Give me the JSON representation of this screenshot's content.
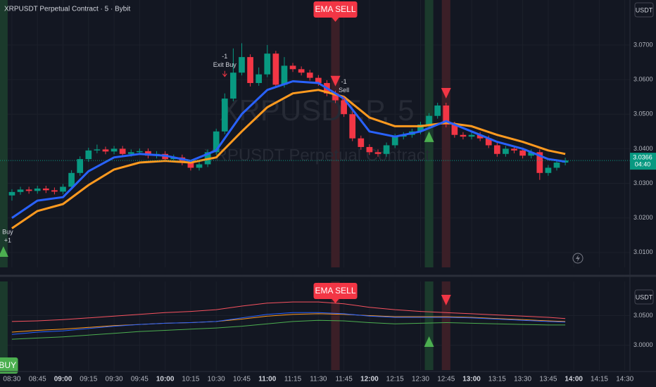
{
  "chart_data": [
    {
      "type": "candlestick",
      "title": "XRPUSDT Perpetual Contract · 5 · Bybit",
      "watermark": [
        "XRPUSDT.P, 5",
        "XRPUSDT Perpetual Contract"
      ],
      "currency": "USDT",
      "xlim": [
        "08:23",
        "14:33"
      ],
      "xticks": [
        "08:30",
        "08:45",
        "09:00",
        "09:15",
        "09:30",
        "09:45",
        "10:00",
        "10:15",
        "10:30",
        "10:45",
        "11:00",
        "11:15",
        "11:30",
        "11:45",
        "12:00",
        "12:15",
        "12:30",
        "12:45",
        "13:00",
        "13:15",
        "13:30",
        "13:45",
        "14:00",
        "14:15",
        "14:30"
      ],
      "ylim": [
        3.0057,
        3.083
      ],
      "yticks": [
        {
          "value": 3.01,
          "label": "3.0100"
        },
        {
          "value": 3.02,
          "label": "3.0200"
        },
        {
          "value": 3.03,
          "label": "3.0300"
        },
        {
          "value": 3.04,
          "label": "3.0400"
        },
        {
          "value": 3.05,
          "label": "3.0500"
        },
        {
          "value": 3.06,
          "label": "3.0600"
        },
        {
          "value": 3.07,
          "label": "3.0700"
        }
      ],
      "grid": true,
      "candles": {
        "up_color": "#089981",
        "down_color": "#f23645",
        "x": [
          "08:30",
          "08:35",
          "08:40",
          "08:45",
          "08:50",
          "08:55",
          "09:00",
          "09:05",
          "09:10",
          "09:15",
          "09:20",
          "09:25",
          "09:30",
          "09:35",
          "09:40",
          "09:45",
          "09:50",
          "09:55",
          "10:00",
          "10:05",
          "10:10",
          "10:15",
          "10:20",
          "10:25",
          "10:30",
          "10:35",
          "10:40",
          "10:45",
          "10:50",
          "10:55",
          "11:00",
          "11:05",
          "11:10",
          "11:15",
          "11:20",
          "11:25",
          "11:30",
          "11:35",
          "11:40",
          "11:45",
          "11:50",
          "11:55",
          "12:00",
          "12:05",
          "12:10",
          "12:15",
          "12:20",
          "12:25",
          "12:30",
          "12:35",
          "12:40",
          "12:45",
          "12:50",
          "12:55",
          "13:00",
          "13:05",
          "13:10",
          "13:15",
          "13:20",
          "13:25",
          "13:30",
          "13:35",
          "13:40",
          "13:45",
          "13:50",
          "13:55"
        ],
        "open": [
          3.0265,
          3.0275,
          3.0282,
          3.0278,
          3.0285,
          3.028,
          3.0276,
          3.029,
          3.033,
          3.037,
          3.0395,
          3.0398,
          3.0392,
          3.04,
          3.0385,
          3.039,
          3.0393,
          3.038,
          3.0385,
          3.037,
          3.0375,
          3.036,
          3.0345,
          3.0355,
          3.039,
          3.045,
          3.0545,
          3.062,
          3.0665,
          3.059,
          3.0615,
          3.0675,
          3.0585,
          3.064,
          3.063,
          3.062,
          3.0605,
          3.059,
          3.056,
          3.054,
          3.05,
          3.043,
          3.0405,
          3.039,
          3.0385,
          3.041,
          3.0435,
          3.044,
          3.045,
          3.047,
          3.0495,
          3.0525,
          3.047,
          3.044,
          3.0435,
          3.044,
          3.043,
          3.041,
          3.0385,
          3.04,
          3.0395,
          3.038,
          3.039,
          3.033,
          3.0345,
          3.036
        ],
        "high": [
          3.0283,
          3.029,
          3.029,
          3.0293,
          3.0293,
          3.0288,
          3.0298,
          3.0338,
          3.0378,
          3.0403,
          3.0412,
          3.0406,
          3.0408,
          3.0408,
          3.0398,
          3.0401,
          3.0401,
          3.0393,
          3.0393,
          3.0383,
          3.0383,
          3.0368,
          3.0363,
          3.0398,
          3.0458,
          3.056,
          3.069,
          3.0705,
          3.0673,
          3.0635,
          3.07,
          3.0683,
          3.0665,
          3.0648,
          3.0638,
          3.0628,
          3.0613,
          3.0598,
          3.0568,
          3.0548,
          3.0508,
          3.0438,
          3.0413,
          3.0398,
          3.0418,
          3.0443,
          3.0448,
          3.0458,
          3.0478,
          3.0503,
          3.0533,
          3.0533,
          3.0478,
          3.0448,
          3.0448,
          3.0448,
          3.0438,
          3.0418,
          3.0408,
          3.0408,
          3.0403,
          3.0398,
          3.0398,
          3.0353,
          3.0368,
          3.0374
        ],
        "low": [
          3.025,
          3.0267,
          3.027,
          3.027,
          3.0272,
          3.0268,
          3.0268,
          3.0282,
          3.0322,
          3.0362,
          3.0387,
          3.0384,
          3.0384,
          3.0377,
          3.0377,
          3.0382,
          3.0372,
          3.0372,
          3.0362,
          3.0362,
          3.0352,
          3.0337,
          3.0337,
          3.0347,
          3.0382,
          3.0442,
          3.0537,
          3.0612,
          3.058,
          3.0582,
          3.0607,
          3.0577,
          3.0577,
          3.0622,
          3.0612,
          3.0597,
          3.0582,
          3.0552,
          3.0532,
          3.0492,
          3.0422,
          3.0397,
          3.0382,
          3.0377,
          3.0377,
          3.0402,
          3.0427,
          3.0432,
          3.0442,
          3.0462,
          3.0487,
          3.0462,
          3.0432,
          3.0427,
          3.0427,
          3.0422,
          3.0402,
          3.0377,
          3.0377,
          3.0387,
          3.0372,
          3.0372,
          3.031,
          3.0322,
          3.0337,
          3.0352
        ],
        "close": [
          3.0275,
          3.0282,
          3.0278,
          3.0285,
          3.028,
          3.0276,
          3.029,
          3.033,
          3.037,
          3.0395,
          3.0398,
          3.0392,
          3.04,
          3.0385,
          3.039,
          3.0393,
          3.038,
          3.0385,
          3.037,
          3.0375,
          3.036,
          3.0345,
          3.0355,
          3.039,
          3.045,
          3.0545,
          3.062,
          3.0665,
          3.059,
          3.0615,
          3.0675,
          3.0585,
          3.064,
          3.063,
          3.062,
          3.0605,
          3.059,
          3.056,
          3.054,
          3.05,
          3.043,
          3.0405,
          3.039,
          3.0385,
          3.041,
          3.0435,
          3.044,
          3.045,
          3.047,
          3.0495,
          3.0525,
          3.047,
          3.044,
          3.0435,
          3.044,
          3.043,
          3.041,
          3.0385,
          3.04,
          3.0395,
          3.038,
          3.039,
          3.033,
          3.0345,
          3.036,
          3.0366
        ]
      },
      "x": [
        "08:30",
        "08:45",
        "09:00",
        "09:15",
        "09:30",
        "09:45",
        "10:00",
        "10:15",
        "10:30",
        "10:45",
        "11:00",
        "11:15",
        "11:30",
        "11:45",
        "12:00",
        "12:15",
        "12:30",
        "12:45",
        "13:00",
        "13:15",
        "13:30",
        "13:45",
        "13:55"
      ],
      "lines": [
        {
          "color": "#ff9a1f",
          "values": [
            3.017,
            3.022,
            3.024,
            3.0295,
            3.034,
            3.036,
            3.0365,
            3.036,
            3.0375,
            3.045,
            3.052,
            3.056,
            3.057,
            3.055,
            3.049,
            3.0465,
            3.0465,
            3.0475,
            3.0465,
            3.044,
            3.042,
            3.0395,
            3.0385
          ]
        },
        {
          "color": "#2962ff",
          "values": [
            3.02,
            3.025,
            3.026,
            3.0335,
            3.0375,
            3.0385,
            3.038,
            3.0365,
            3.0395,
            3.05,
            3.057,
            3.0595,
            3.059,
            3.0545,
            3.045,
            3.0435,
            3.045,
            3.048,
            3.045,
            3.042,
            3.04,
            3.037,
            3.0363
          ]
        }
      ],
      "last_price": {
        "value": 3.0366,
        "label": "3.0366"
      },
      "countdown": "04:40",
      "bands": [
        {
          "x": "08:25",
          "color": "#1b3a2c"
        },
        {
          "x": "11:40",
          "color": "#3b1f27"
        },
        {
          "x": "12:35",
          "color": "#1b3a2c"
        },
        {
          "x": "12:45",
          "color": "#3b1f27"
        }
      ],
      "markers": [
        {
          "x": "08:25",
          "shape": "up",
          "color": "#4caf50"
        },
        {
          "x": "11:40",
          "shape": "down",
          "color": "#f23645"
        },
        {
          "x": "12:35",
          "shape": "up",
          "color": "#4caf50"
        },
        {
          "x": "12:45",
          "shape": "down",
          "color": "#f23645"
        }
      ],
      "signal_labels": [
        {
          "x": "11:40",
          "text": "EMA SELL",
          "color": "#f23645"
        }
      ],
      "annotations": [
        {
          "x": "08:25",
          "lines": [
            "Buy",
            "+1"
          ]
        },
        {
          "x": "10:35",
          "lines": [
            "-1",
            "Exit Buy"
          ]
        },
        {
          "x": "11:45",
          "lines": [
            "-1",
            "Sell"
          ]
        }
      ]
    },
    {
      "type": "line",
      "currency": "USDT",
      "xlim": [
        "08:23",
        "14:33"
      ],
      "ylim": [
        2.9577,
        3.1077
      ],
      "yticks": [
        {
          "value": 3.0,
          "label": "3.0000"
        },
        {
          "value": 3.05,
          "label": "3.0500"
        }
      ],
      "x": [
        "08:30",
        "08:45",
        "09:00",
        "09:15",
        "09:30",
        "09:45",
        "10:00",
        "10:15",
        "10:30",
        "10:45",
        "11:00",
        "11:15",
        "11:30",
        "11:45",
        "12:00",
        "12:15",
        "12:30",
        "12:45",
        "13:00",
        "13:15",
        "13:30",
        "13:45",
        "13:55"
      ],
      "lines": [
        {
          "color": "#f7525f",
          "values": [
            3.04,
            3.041,
            3.043,
            3.046,
            3.049,
            3.052,
            3.055,
            3.057,
            3.06,
            3.066,
            3.071,
            3.073,
            3.073,
            3.07,
            3.064,
            3.06,
            3.057,
            3.055,
            3.053,
            3.051,
            3.049,
            3.047,
            3.045
          ]
        },
        {
          "color": "#4caf50",
          "values": [
            3.01,
            3.012,
            3.014,
            3.017,
            3.02,
            3.023,
            3.025,
            3.027,
            3.029,
            3.032,
            3.036,
            3.04,
            3.042,
            3.041,
            3.038,
            3.036,
            3.037,
            3.038,
            3.037,
            3.036,
            3.035,
            3.034,
            3.034
          ]
        },
        {
          "color": "#ff9a1f",
          "values": [
            3.022,
            3.025,
            3.027,
            3.03,
            3.033,
            3.035,
            3.037,
            3.038,
            3.04,
            3.044,
            3.049,
            3.052,
            3.053,
            3.052,
            3.05,
            3.048,
            3.048,
            3.048,
            3.047,
            3.045,
            3.043,
            3.041,
            3.04
          ]
        },
        {
          "color": "#2962ff",
          "values": [
            3.018,
            3.022,
            3.024,
            3.028,
            3.032,
            3.035,
            3.037,
            3.038,
            3.04,
            3.046,
            3.052,
            3.055,
            3.055,
            3.053,
            3.049,
            3.047,
            3.047,
            3.047,
            3.046,
            3.044,
            3.042,
            3.04,
            3.039
          ]
        }
      ],
      "bands": [
        {
          "x": "08:25",
          "color": "#1b3a2c"
        },
        {
          "x": "11:40",
          "color": "#3b1f27"
        },
        {
          "x": "12:35",
          "color": "#1b3a2c"
        },
        {
          "x": "12:45",
          "color": "#3b1f27"
        }
      ],
      "markers": [
        {
          "x": "12:35",
          "shape": "up",
          "color": "#4caf50"
        },
        {
          "x": "12:45",
          "shape": "down",
          "color": "#f23645"
        }
      ],
      "signal_labels": [
        {
          "x": "11:40",
          "text": "EMA SELL",
          "color": "#f23645"
        },
        {
          "x": "08:25",
          "text": "BUY",
          "color": "#4caf50"
        }
      ]
    }
  ]
}
